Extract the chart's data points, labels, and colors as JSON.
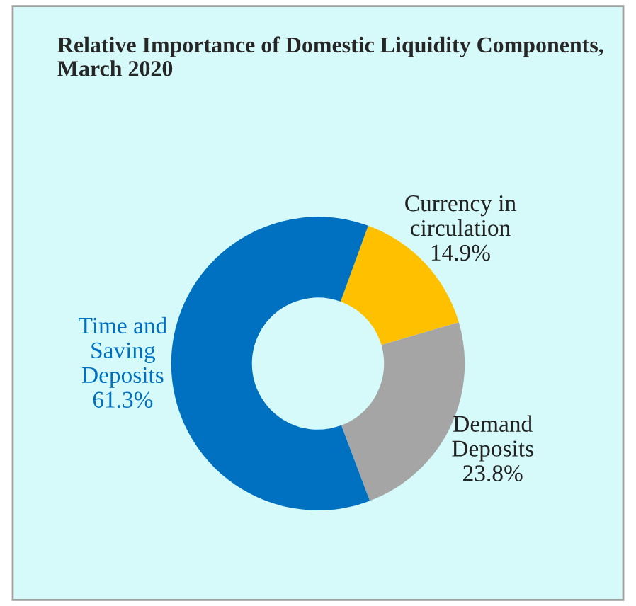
{
  "chart_data": {
    "type": "donut",
    "title": "Relative Importance of Domestic Liquidity Components, March 2020",
    "categories": [
      "Currency in circulation",
      "Demand Deposits",
      "Time and Saving Deposits"
    ],
    "values": [
      14.9,
      23.8,
      61.3
    ],
    "colors": [
      "#ffc000",
      "#a5a5a5",
      "#0070c0"
    ],
    "value_labels": [
      "14.9%",
      "23.8%",
      "61.3%"
    ]
  }
}
